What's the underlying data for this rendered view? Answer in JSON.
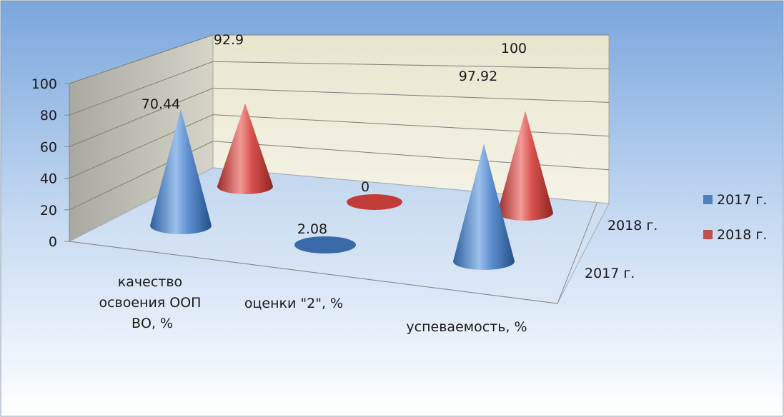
{
  "chart_data": {
    "type": "bar",
    "style": "3d-cone",
    "categories": [
      "качество освоения ООП ВО, %",
      "оценки  \"2\", %",
      "успеваемость, %"
    ],
    "category_lines": [
      [
        "качество",
        "освоения ООП",
        "ВО, %"
      ],
      [
        "оценки  \"2\", %"
      ],
      [
        "успеваемость, %"
      ]
    ],
    "series": [
      {
        "name": "2017 г.",
        "color": "#4f81bd",
        "values": [
          70.44,
          2.08,
          97.92
        ],
        "labels": [
          "70.44",
          "2.08",
          "97.92"
        ]
      },
      {
        "name": "2018 г.",
        "color": "#c0504d",
        "values": [
          92.9,
          0,
          100
        ],
        "labels": [
          "92.9",
          "0",
          "100"
        ]
      }
    ],
    "depth_labels": [
      "2017 г.",
      "2018 г."
    ],
    "y_ticks": [
      "0",
      "20",
      "40",
      "60",
      "80",
      "100"
    ],
    "ylim": [
      0,
      100
    ],
    "grid": true,
    "legend_position": "right",
    "background_colors": [
      "#6f9fd6",
      "#ffffff"
    ]
  }
}
